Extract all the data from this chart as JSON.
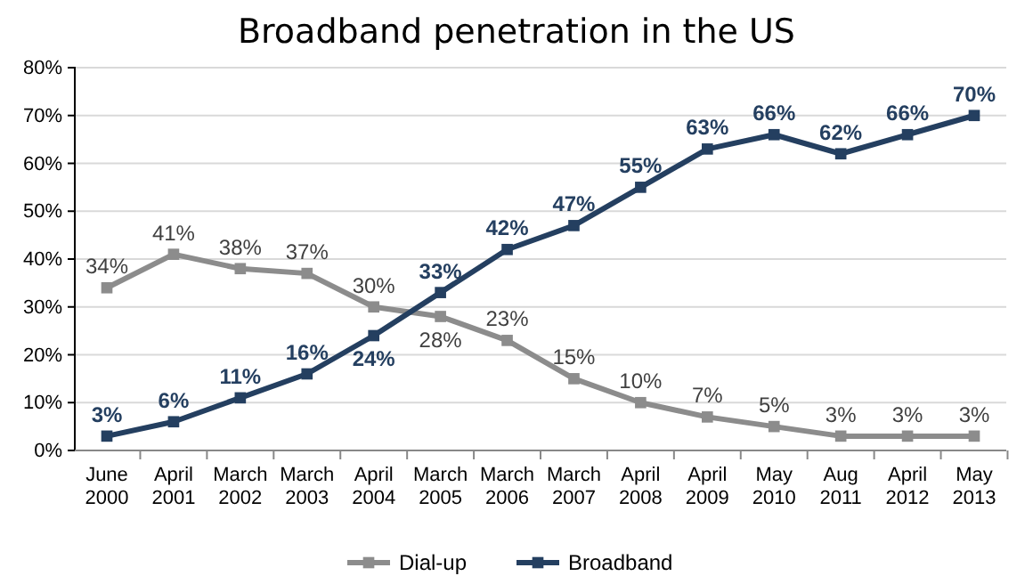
{
  "chart_data": {
    "type": "line",
    "title": "Broadband penetration in the US",
    "categories": [
      "June 2000",
      "April 2001",
      "March 2002",
      "March 2003",
      "April 2004",
      "March 2005",
      "March 2006",
      "March 2007",
      "April 2008",
      "April 2009",
      "May 2010",
      "Aug 2011",
      "April 2012",
      "May 2013"
    ],
    "series": [
      {
        "name": "Dial-up",
        "color": "#8c8c8c",
        "values": [
          34,
          41,
          38,
          37,
          30,
          28,
          23,
          15,
          10,
          7,
          5,
          3,
          3,
          3
        ],
        "value_labels": [
          "34%",
          "41%",
          "38%",
          "37%",
          "30%",
          "28%",
          "23%",
          "15%",
          "10%",
          "7%",
          "5%",
          "3%",
          "3%",
          "3%"
        ]
      },
      {
        "name": "Broadband",
        "color": "#243f60",
        "values": [
          3,
          6,
          11,
          16,
          24,
          33,
          42,
          47,
          55,
          63,
          66,
          62,
          66,
          70
        ],
        "value_labels": [
          "3%",
          "6%",
          "11%",
          "16%",
          "24%",
          "33%",
          "42%",
          "47%",
          "55%",
          "63%",
          "66%",
          "62%",
          "66%",
          "70%"
        ]
      }
    ],
    "ylim": [
      0,
      80
    ],
    "yticks": [
      {
        "value": 0,
        "label": "0%"
      },
      {
        "value": 10,
        "label": "10%"
      },
      {
        "value": 20,
        "label": "20%"
      },
      {
        "value": 30,
        "label": "30%"
      },
      {
        "value": 40,
        "label": "40%"
      },
      {
        "value": 50,
        "label": "50%"
      },
      {
        "value": 60,
        "label": "60%"
      },
      {
        "value": 70,
        "label": "70%"
      },
      {
        "value": 80,
        "label": "80%"
      }
    ],
    "grid": "y",
    "legend": "bottom",
    "marker": "square",
    "line_style": "solid"
  }
}
